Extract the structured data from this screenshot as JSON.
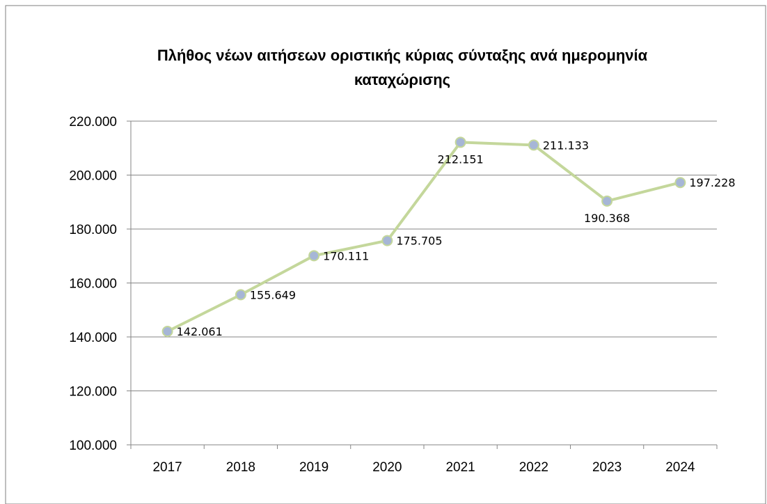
{
  "chart_data": {
    "type": "line",
    "title_lines": [
      "Πλήθος νέων αιτήσεων οριστικής κύριας σύνταξης ανά ημερομηνία",
      "καταχώρισης"
    ],
    "categories": [
      "2017",
      "2018",
      "2019",
      "2020",
      "2021",
      "2022",
      "2023",
      "2024"
    ],
    "values": [
      142061,
      155649,
      170111,
      175705,
      212151,
      211133,
      190368,
      197228
    ],
    "data_labels": [
      "142.061",
      "155.649",
      "170.111",
      "175.705",
      "212.151",
      "211.133",
      "190.368",
      "197.228"
    ],
    "ylim": [
      100000,
      220000
    ],
    "y_ticks": [
      100000,
      120000,
      140000,
      160000,
      180000,
      200000,
      220000
    ],
    "y_tick_labels": [
      "100.000",
      "120.000",
      "140.000",
      "160.000",
      "180.000",
      "200.000",
      "220.000"
    ],
    "grid": true,
    "legend": "none",
    "xlabel": "",
    "ylabel": "",
    "colors": {
      "line": "#c4d79b",
      "marker_fill": "#a6b6d6",
      "marker_stroke": "#c4d79b",
      "grid": "#868686",
      "border": "#7f7f7f"
    }
  }
}
